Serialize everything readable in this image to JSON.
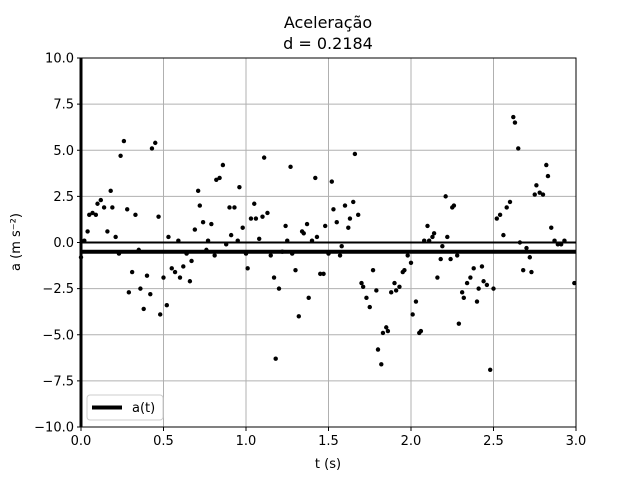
{
  "chart_data": {
    "type": "scatter",
    "title": "Aceleração",
    "subtitle": "d = 0.2184",
    "xlabel": "t (s)",
    "ylabel": "a (m s⁻²)",
    "xlim": [
      0.0,
      3.0
    ],
    "ylim": [
      -10.0,
      10.0
    ],
    "xticks": [
      0.0,
      0.5,
      1.0,
      1.5,
      2.0,
      2.5,
      3.0
    ],
    "xtick_labels": [
      "0.0",
      "0.5",
      "1.0",
      "1.5",
      "2.0",
      "2.5",
      "3.0"
    ],
    "yticks": [
      -10.0,
      -7.5,
      -5.0,
      -2.5,
      0.0,
      2.5,
      5.0,
      7.5,
      10.0
    ],
    "ytick_labels": [
      "−10.0",
      "−7.5",
      "−5.0",
      "−2.5",
      "0.0",
      "2.5",
      "5.0",
      "7.5",
      "10.0"
    ],
    "grid": true,
    "legend": {
      "position": "bottom-left",
      "entries": [
        "a(t)"
      ]
    },
    "colors": {
      "points": "#000000",
      "mean_line": "#000000",
      "zero_line": "#000000",
      "grid": "#b0b0b0"
    },
    "zero_line": 0.0,
    "mean_line": {
      "name": "a(t)",
      "y": -0.5
    },
    "points": [
      [
        0.0,
        -0.8
      ],
      [
        0.02,
        0.1
      ],
      [
        0.04,
        0.6
      ],
      [
        0.05,
        1.5
      ],
      [
        0.07,
        1.6
      ],
      [
        0.09,
        1.5
      ],
      [
        0.1,
        2.1
      ],
      [
        0.12,
        2.3
      ],
      [
        0.14,
        1.9
      ],
      [
        0.16,
        0.6
      ],
      [
        0.18,
        2.8
      ],
      [
        0.19,
        1.9
      ],
      [
        0.21,
        0.3
      ],
      [
        0.23,
        -0.6
      ],
      [
        0.24,
        4.7
      ],
      [
        0.26,
        5.5
      ],
      [
        0.28,
        1.8
      ],
      [
        0.29,
        -2.7
      ],
      [
        0.31,
        -1.6
      ],
      [
        0.33,
        1.5
      ],
      [
        0.35,
        -0.4
      ],
      [
        0.36,
        -2.5
      ],
      [
        0.38,
        -3.6
      ],
      [
        0.4,
        -1.8
      ],
      [
        0.42,
        -2.8
      ],
      [
        0.43,
        5.1
      ],
      [
        0.45,
        5.4
      ],
      [
        0.47,
        1.4
      ],
      [
        0.48,
        -3.9
      ],
      [
        0.5,
        -1.9
      ],
      [
        0.52,
        -3.4
      ],
      [
        0.53,
        0.3
      ],
      [
        0.55,
        -1.4
      ],
      [
        0.57,
        -1.6
      ],
      [
        0.59,
        0.1
      ],
      [
        0.6,
        -1.9
      ],
      [
        0.62,
        -1.3
      ],
      [
        0.64,
        -0.6
      ],
      [
        0.66,
        -2.1
      ],
      [
        0.67,
        -1.0
      ],
      [
        0.69,
        0.7
      ],
      [
        0.71,
        2.8
      ],
      [
        0.72,
        2.0
      ],
      [
        0.74,
        1.1
      ],
      [
        0.76,
        -0.4
      ],
      [
        0.77,
        0.1
      ],
      [
        0.79,
        1.0
      ],
      [
        0.81,
        -0.7
      ],
      [
        0.82,
        3.4
      ],
      [
        0.84,
        3.5
      ],
      [
        0.86,
        4.2
      ],
      [
        0.88,
        -0.1
      ],
      [
        0.9,
        1.9
      ],
      [
        0.91,
        0.4
      ],
      [
        0.93,
        1.9
      ],
      [
        0.95,
        0.1
      ],
      [
        0.96,
        3.0
      ],
      [
        0.98,
        0.8
      ],
      [
        1.0,
        -0.6
      ],
      [
        1.01,
        -1.4
      ],
      [
        1.03,
        1.3
      ],
      [
        1.05,
        2.1
      ],
      [
        1.06,
        1.3
      ],
      [
        1.08,
        0.2
      ],
      [
        1.1,
        1.4
      ],
      [
        1.11,
        4.6
      ],
      [
        1.13,
        1.6
      ],
      [
        1.15,
        -0.7
      ],
      [
        1.17,
        -1.9
      ],
      [
        1.18,
        -6.3
      ],
      [
        1.2,
        -2.5
      ],
      [
        1.22,
        -0.5
      ],
      [
        1.24,
        0.9
      ],
      [
        1.25,
        0.1
      ],
      [
        1.27,
        4.1
      ],
      [
        1.28,
        -0.6
      ],
      [
        1.3,
        -1.5
      ],
      [
        1.32,
        -4.0
      ],
      [
        1.34,
        0.6
      ],
      [
        1.35,
        0.5
      ],
      [
        1.37,
        1.0
      ],
      [
        1.38,
        -3.0
      ],
      [
        1.4,
        0.1
      ],
      [
        1.42,
        3.5
      ],
      [
        1.43,
        0.3
      ],
      [
        1.45,
        -1.7
      ],
      [
        1.47,
        -1.7
      ],
      [
        1.48,
        0.9
      ],
      [
        1.5,
        -0.6
      ],
      [
        1.52,
        3.3
      ],
      [
        1.53,
        1.8
      ],
      [
        1.55,
        1.1
      ],
      [
        1.57,
        -0.7
      ],
      [
        1.58,
        -0.2
      ],
      [
        1.6,
        2.0
      ],
      [
        1.62,
        0.8
      ],
      [
        1.63,
        1.3
      ],
      [
        1.65,
        2.2
      ],
      [
        1.66,
        4.8
      ],
      [
        1.68,
        1.5
      ],
      [
        1.7,
        -2.2
      ],
      [
        1.71,
        -2.4
      ],
      [
        1.73,
        -3.0
      ],
      [
        1.75,
        -3.5
      ],
      [
        1.77,
        -1.5
      ],
      [
        1.79,
        -2.6
      ],
      [
        1.8,
        -5.8
      ],
      [
        1.82,
        -6.6
      ],
      [
        1.83,
        -4.9
      ],
      [
        1.85,
        -4.6
      ],
      [
        1.86,
        -4.8
      ],
      [
        1.88,
        -2.7
      ],
      [
        1.9,
        -2.2
      ],
      [
        1.91,
        -2.6
      ],
      [
        1.93,
        -2.4
      ],
      [
        1.95,
        -1.6
      ],
      [
        1.96,
        -1.5
      ],
      [
        1.98,
        -0.7
      ],
      [
        2.0,
        -1.1
      ],
      [
        2.01,
        -3.9
      ],
      [
        2.03,
        -3.2
      ],
      [
        2.05,
        -4.9
      ],
      [
        2.06,
        -4.8
      ],
      [
        2.08,
        0.1
      ],
      [
        2.1,
        0.9
      ],
      [
        2.11,
        0.1
      ],
      [
        2.13,
        0.3
      ],
      [
        2.14,
        0.5
      ],
      [
        2.16,
        -1.9
      ],
      [
        2.18,
        -0.9
      ],
      [
        2.19,
        -0.2
      ],
      [
        2.21,
        2.5
      ],
      [
        2.22,
        0.3
      ],
      [
        2.24,
        -0.9
      ],
      [
        2.25,
        1.9
      ],
      [
        2.26,
        2.0
      ],
      [
        2.28,
        -0.7
      ],
      [
        2.29,
        -4.4
      ],
      [
        2.31,
        -2.7
      ],
      [
        2.32,
        -3.0
      ],
      [
        2.34,
        -2.2
      ],
      [
        2.36,
        -1.9
      ],
      [
        2.38,
        -1.4
      ],
      [
        2.4,
        -3.2
      ],
      [
        2.41,
        -2.5
      ],
      [
        2.43,
        -1.3
      ],
      [
        2.44,
        -2.1
      ],
      [
        2.46,
        -2.3
      ],
      [
        2.48,
        -6.9
      ],
      [
        2.5,
        -2.5
      ],
      [
        2.52,
        1.3
      ],
      [
        2.54,
        1.5
      ],
      [
        2.56,
        0.4
      ],
      [
        2.58,
        1.9
      ],
      [
        2.6,
        2.2
      ],
      [
        2.62,
        6.8
      ],
      [
        2.63,
        6.5
      ],
      [
        2.65,
        5.1
      ],
      [
        2.66,
        0.0
      ],
      [
        2.68,
        -1.5
      ],
      [
        2.7,
        -0.3
      ],
      [
        2.72,
        -0.8
      ],
      [
        2.73,
        -1.6
      ],
      [
        2.75,
        2.6
      ],
      [
        2.76,
        3.1
      ],
      [
        2.78,
        2.7
      ],
      [
        2.8,
        2.6
      ],
      [
        2.82,
        4.2
      ],
      [
        2.83,
        3.6
      ],
      [
        2.85,
        0.8
      ],
      [
        2.87,
        0.1
      ],
      [
        2.89,
        -0.1
      ],
      [
        2.91,
        -0.1
      ],
      [
        2.93,
        0.1
      ],
      [
        2.99,
        -2.2
      ]
    ]
  }
}
